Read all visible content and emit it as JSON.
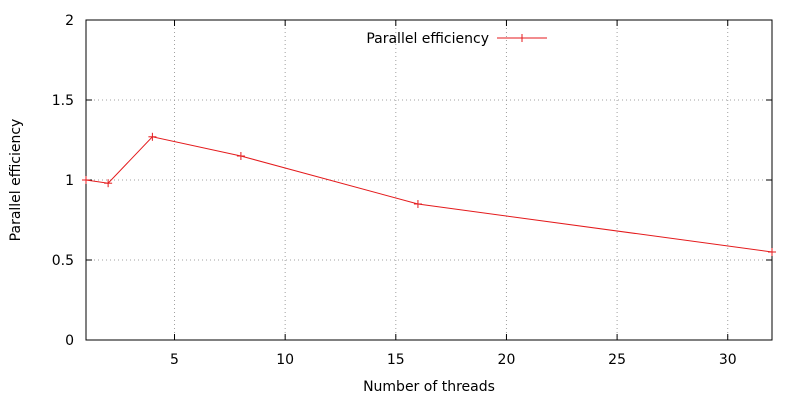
{
  "chart_data": {
    "type": "line",
    "title": "",
    "xlabel": "Number of threads",
    "ylabel": "Parallel efficiency",
    "xlim": [
      1,
      32
    ],
    "ylim": [
      0,
      2
    ],
    "x_ticks": [
      5,
      10,
      15,
      20,
      25,
      30
    ],
    "y_ticks": [
      0,
      0.5,
      1,
      1.5,
      2
    ],
    "x_tick_labels": [
      "5",
      "10",
      "15",
      "20",
      "25",
      "30"
    ],
    "y_tick_labels": [
      "0",
      "0.5",
      "1",
      "1.5",
      "2"
    ],
    "grid": true,
    "legend_position": "top-center",
    "series": [
      {
        "name": "Parallel efficiency",
        "color": "#e41a1c",
        "marker": "plus",
        "x": [
          1,
          2,
          4,
          8,
          16,
          32
        ],
        "y": [
          1.0,
          0.98,
          1.27,
          1.15,
          0.85,
          0.55
        ]
      }
    ]
  }
}
